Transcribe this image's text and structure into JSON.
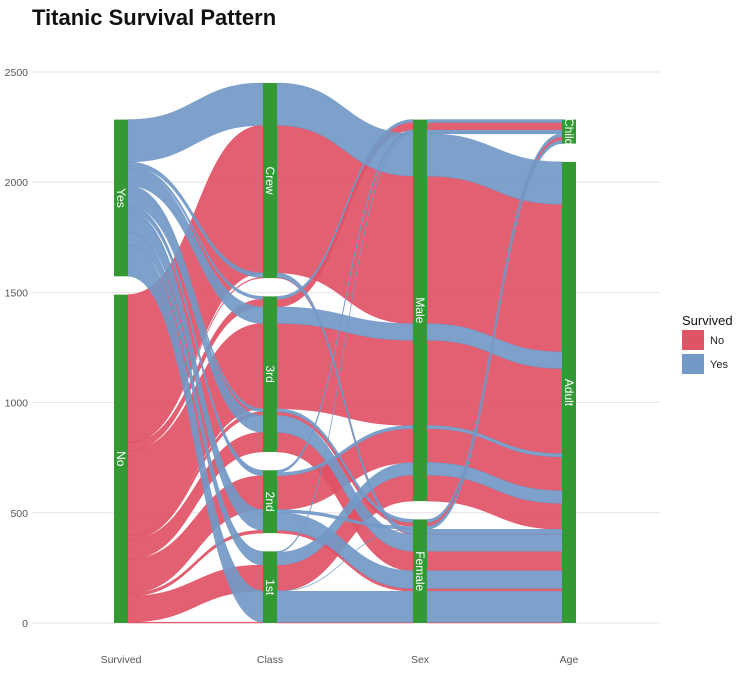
{
  "chart_data": {
    "type": "alluvial",
    "title": "Titanic Survival Pattern",
    "xlabel": "",
    "ylabel": "",
    "ylim": [
      0,
      2500
    ],
    "yticks": [
      0,
      500,
      1000,
      1500,
      2000,
      2500
    ],
    "grid": true,
    "axes": [
      "Survived",
      "Class",
      "Sex",
      "Age"
    ],
    "strata": {
      "Survived": [
        "No",
        "Yes"
      ],
      "Class": [
        "1st",
        "2nd",
        "3rd",
        "Crew"
      ],
      "Sex": [
        "Female",
        "Male"
      ],
      "Age": [
        "Adult",
        "Child"
      ]
    },
    "legend": {
      "title": "Survived",
      "position": "right",
      "items": [
        {
          "name": "No",
          "color": "#e05366"
        },
        {
          "name": "Yes",
          "color": "#7299c6"
        }
      ]
    },
    "colors": {
      "No": "#e05366",
      "Yes": "#7299c6",
      "stratum": "#339933",
      "stratum_text": "#ffffff"
    },
    "flows": [
      {
        "Survived": "No",
        "Class": "1st",
        "Sex": "Male",
        "Age": "Child",
        "Freq": 0
      },
      {
        "Survived": "No",
        "Class": "2nd",
        "Sex": "Male",
        "Age": "Child",
        "Freq": 0
      },
      {
        "Survived": "No",
        "Class": "3rd",
        "Sex": "Male",
        "Age": "Child",
        "Freq": 35
      },
      {
        "Survived": "No",
        "Class": "Crew",
        "Sex": "Male",
        "Age": "Child",
        "Freq": 0
      },
      {
        "Survived": "No",
        "Class": "1st",
        "Sex": "Female",
        "Age": "Child",
        "Freq": 0
      },
      {
        "Survived": "No",
        "Class": "2nd",
        "Sex": "Female",
        "Age": "Child",
        "Freq": 0
      },
      {
        "Survived": "No",
        "Class": "3rd",
        "Sex": "Female",
        "Age": "Child",
        "Freq": 17
      },
      {
        "Survived": "No",
        "Class": "Crew",
        "Sex": "Female",
        "Age": "Child",
        "Freq": 0
      },
      {
        "Survived": "No",
        "Class": "1st",
        "Sex": "Male",
        "Age": "Adult",
        "Freq": 118
      },
      {
        "Survived": "No",
        "Class": "2nd",
        "Sex": "Male",
        "Age": "Adult",
        "Freq": 154
      },
      {
        "Survived": "No",
        "Class": "3rd",
        "Sex": "Male",
        "Age": "Adult",
        "Freq": 387
      },
      {
        "Survived": "No",
        "Class": "Crew",
        "Sex": "Male",
        "Age": "Adult",
        "Freq": 670
      },
      {
        "Survived": "No",
        "Class": "1st",
        "Sex": "Female",
        "Age": "Adult",
        "Freq": 4
      },
      {
        "Survived": "No",
        "Class": "2nd",
        "Sex": "Female",
        "Age": "Adult",
        "Freq": 13
      },
      {
        "Survived": "No",
        "Class": "3rd",
        "Sex": "Female",
        "Age": "Adult",
        "Freq": 89
      },
      {
        "Survived": "No",
        "Class": "Crew",
        "Sex": "Female",
        "Age": "Adult",
        "Freq": 3
      },
      {
        "Survived": "Yes",
        "Class": "1st",
        "Sex": "Male",
        "Age": "Child",
        "Freq": 5
      },
      {
        "Survived": "Yes",
        "Class": "2nd",
        "Sex": "Male",
        "Age": "Child",
        "Freq": 11
      },
      {
        "Survived": "Yes",
        "Class": "3rd",
        "Sex": "Male",
        "Age": "Child",
        "Freq": 13
      },
      {
        "Survived": "Yes",
        "Class": "Crew",
        "Sex": "Male",
        "Age": "Child",
        "Freq": 0
      },
      {
        "Survived": "Yes",
        "Class": "1st",
        "Sex": "Female",
        "Age": "Child",
        "Freq": 1
      },
      {
        "Survived": "Yes",
        "Class": "2nd",
        "Sex": "Female",
        "Age": "Child",
        "Freq": 13
      },
      {
        "Survived": "Yes",
        "Class": "3rd",
        "Sex": "Female",
        "Age": "Child",
        "Freq": 14
      },
      {
        "Survived": "Yes",
        "Class": "Crew",
        "Sex": "Female",
        "Age": "Child",
        "Freq": 0
      },
      {
        "Survived": "Yes",
        "Class": "1st",
        "Sex": "Male",
        "Age": "Adult",
        "Freq": 57
      },
      {
        "Survived": "Yes",
        "Class": "2nd",
        "Sex": "Male",
        "Age": "Adult",
        "Freq": 14
      },
      {
        "Survived": "Yes",
        "Class": "3rd",
        "Sex": "Male",
        "Age": "Adult",
        "Freq": 75
      },
      {
        "Survived": "Yes",
        "Class": "Crew",
        "Sex": "Male",
        "Age": "Adult",
        "Freq": 192
      },
      {
        "Survived": "Yes",
        "Class": "1st",
        "Sex": "Female",
        "Age": "Adult",
        "Freq": 140
      },
      {
        "Survived": "Yes",
        "Class": "2nd",
        "Sex": "Female",
        "Age": "Adult",
        "Freq": 80
      },
      {
        "Survived": "Yes",
        "Class": "3rd",
        "Sex": "Female",
        "Age": "Adult",
        "Freq": 76
      },
      {
        "Survived": "Yes",
        "Class": "Crew",
        "Sex": "Female",
        "Age": "Adult",
        "Freq": 20
      }
    ]
  }
}
